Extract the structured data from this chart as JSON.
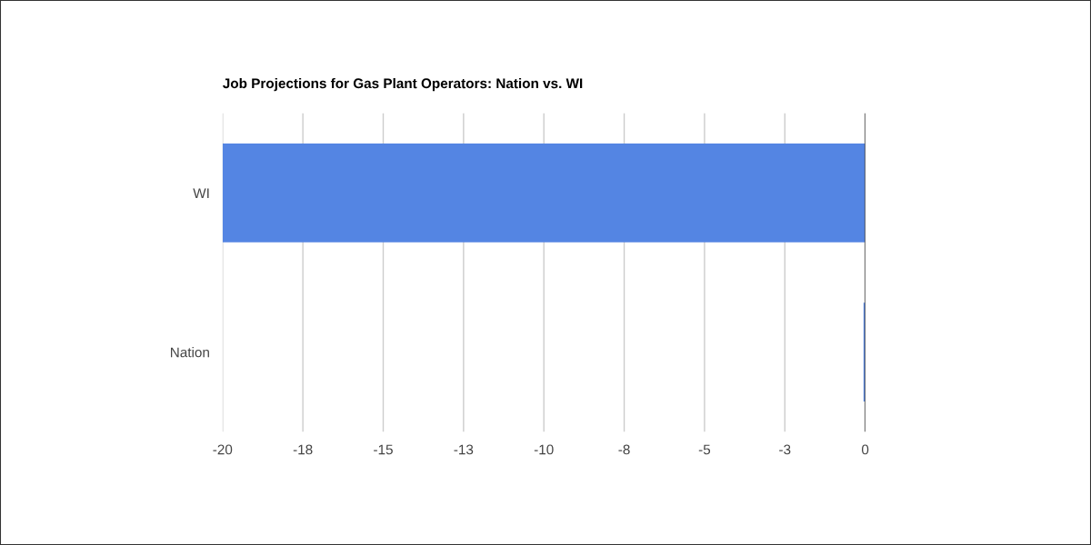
{
  "chart_data": {
    "type": "bar",
    "orientation": "horizontal",
    "title": "Job Projections for Gas Plant Operators: Nation vs. WI",
    "categories": [
      "WI",
      "Nation"
    ],
    "values": [
      -20,
      -0.05
    ],
    "color": "#5485e3",
    "xlim": [
      -20,
      0
    ],
    "xticks": [
      -20,
      {
        "value": -17.5,
        "label": "-18"
      },
      -15,
      {
        "value": -12.5,
        "label": "-13"
      },
      -10,
      {
        "value": -7.5,
        "label": "-8"
      },
      -5,
      {
        "value": -2.5,
        "label": "-3"
      },
      0
    ],
    "grid": "x",
    "legend": false
  }
}
